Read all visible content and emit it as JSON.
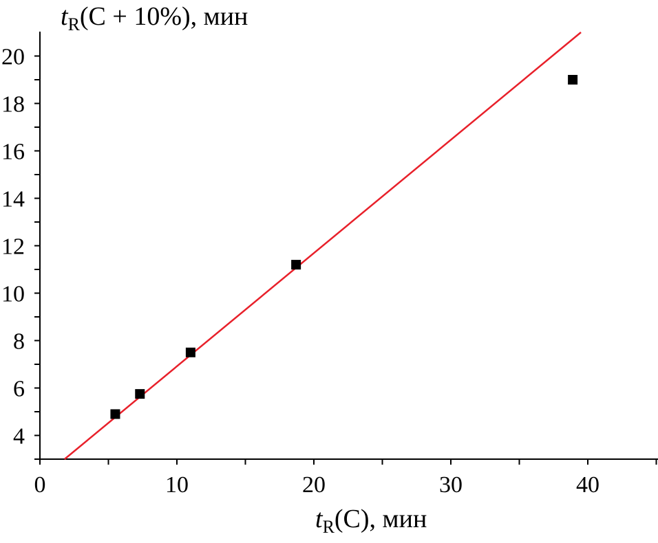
{
  "chart_data": {
    "type": "scatter",
    "title": "",
    "xlabel": {
      "var": "t",
      "sub": "R",
      "rest": "(C), мин"
    },
    "ylabel": {
      "var": "t",
      "sub": "R",
      "rest": "(C + 10%), мин"
    },
    "xlim": [
      0,
      45
    ],
    "ylim": [
      3,
      21
    ],
    "x_ticks": [
      0,
      10,
      20,
      30,
      40
    ],
    "x_minor_step": 5,
    "y_ticks": [
      4,
      6,
      8,
      10,
      12,
      14,
      16,
      18,
      20
    ],
    "y_minor_step": 1,
    "grid": false,
    "points": [
      {
        "x": 5.5,
        "y": 4.9
      },
      {
        "x": 7.3,
        "y": 5.75
      },
      {
        "x": 11.0,
        "y": 7.5
      },
      {
        "x": 18.7,
        "y": 11.2
      },
      {
        "x": 38.9,
        "y": 19.0
      }
    ],
    "fit_line": {
      "x": [
        1.8,
        39.5
      ],
      "y": [
        3.0,
        21.0
      ],
      "color": "#e8202a"
    },
    "marker_color": "#000000"
  }
}
